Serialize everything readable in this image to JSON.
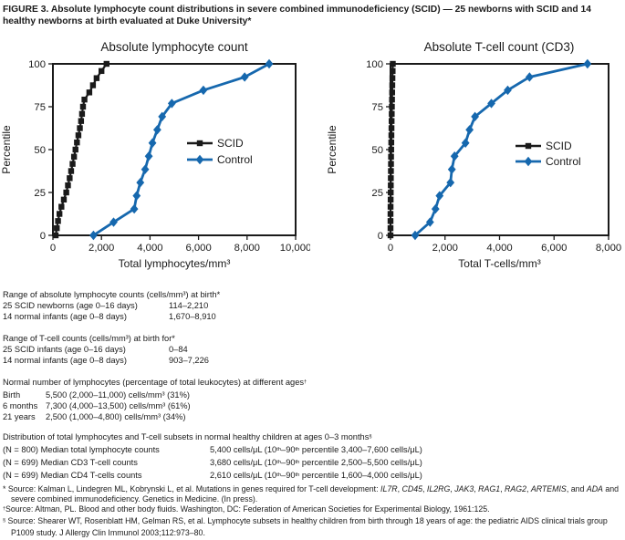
{
  "figure": {
    "title": "FIGURE 3. Absolute lymphocyte count distributions in severe combined immunodeficiency (SCID) — 25 newborns with SCID and 14 healthy newborns at birth evaluated at Duke University*"
  },
  "colors": {
    "text": "#1a1a1a",
    "scid": "#1a1a1a",
    "control": "#1668ae"
  },
  "chart_data": [
    {
      "type": "line",
      "title": "Absolute lymphocyte count",
      "xlabel": "Total lymphocytes/mm³",
      "ylabel": "Percentile",
      "xlim": [
        0,
        10000
      ],
      "ylim": [
        0,
        100
      ],
      "grid": false,
      "legend_position": "inside-right",
      "xticks": [
        {
          "v": 0,
          "label": "0"
        },
        {
          "v": 2000,
          "label": "2,000"
        },
        {
          "v": 4000,
          "label": "4,000"
        },
        {
          "v": 6000,
          "label": "6,000"
        },
        {
          "v": 8000,
          "label": "8,000"
        },
        {
          "v": 10000,
          "label": "10,000"
        }
      ],
      "yticks": [
        {
          "v": 0,
          "label": "0"
        },
        {
          "v": 25,
          "label": "25"
        },
        {
          "v": 50,
          "label": "50"
        },
        {
          "v": 75,
          "label": "75"
        },
        {
          "v": 100,
          "label": "100"
        }
      ],
      "series": [
        {
          "name": "SCID",
          "color": "#1a1a1a",
          "marker": "square",
          "points": [
            [
              114,
              0
            ],
            [
              160,
              4.17
            ],
            [
              210,
              8.33
            ],
            [
              270,
              12.5
            ],
            [
              350,
              16.67
            ],
            [
              450,
              20.83
            ],
            [
              550,
              25
            ],
            [
              620,
              29.17
            ],
            [
              690,
              33.33
            ],
            [
              750,
              37.5
            ],
            [
              810,
              41.67
            ],
            [
              870,
              45.83
            ],
            [
              930,
              50
            ],
            [
              990,
              54.17
            ],
            [
              1050,
              58.33
            ],
            [
              1110,
              62.5
            ],
            [
              1160,
              66.67
            ],
            [
              1200,
              70.83
            ],
            [
              1240,
              75
            ],
            [
              1300,
              79.17
            ],
            [
              1500,
              83.33
            ],
            [
              1650,
              87.5
            ],
            [
              1800,
              91.67
            ],
            [
              2000,
              95.83
            ],
            [
              2210,
              100
            ]
          ]
        },
        {
          "name": "Control",
          "color": "#1668ae",
          "marker": "diamond",
          "points": [
            [
              1670,
              0
            ],
            [
              2500,
              7.69
            ],
            [
              3350,
              15.38
            ],
            [
              3450,
              23.08
            ],
            [
              3600,
              30.77
            ],
            [
              3800,
              38.46
            ],
            [
              3950,
              46.15
            ],
            [
              4100,
              53.85
            ],
            [
              4300,
              61.54
            ],
            [
              4500,
              69.23
            ],
            [
              4900,
              76.92
            ],
            [
              6200,
              84.62
            ],
            [
              7900,
              92.31
            ],
            [
              8910,
              100
            ]
          ]
        }
      ]
    },
    {
      "type": "line",
      "title": "Absolute T-cell count (CD3)",
      "xlabel": "Total T-cells/mm³",
      "ylabel": "Percentile",
      "xlim": [
        0,
        8000
      ],
      "ylim": [
        0,
        100
      ],
      "grid": false,
      "legend_position": "inside-right",
      "xticks": [
        {
          "v": 0,
          "label": "0"
        },
        {
          "v": 2000,
          "label": "2,000"
        },
        {
          "v": 4000,
          "label": "4,000"
        },
        {
          "v": 6000,
          "label": "6,000"
        },
        {
          "v": 8000,
          "label": "8,000"
        }
      ],
      "yticks": [
        {
          "v": 0,
          "label": "0"
        },
        {
          "v": 25,
          "label": "25"
        },
        {
          "v": 50,
          "label": "50"
        },
        {
          "v": 75,
          "label": "75"
        },
        {
          "v": 100,
          "label": "100"
        }
      ],
      "series": [
        {
          "name": "SCID",
          "color": "#1a1a1a",
          "marker": "square",
          "points": [
            [
              0,
              0
            ],
            [
              0,
              4.17
            ],
            [
              0,
              8.33
            ],
            [
              0,
              12.5
            ],
            [
              2,
              16.67
            ],
            [
              5,
              20.83
            ],
            [
              8,
              25
            ],
            [
              10,
              29.17
            ],
            [
              12,
              33.33
            ],
            [
              15,
              37.5
            ],
            [
              18,
              41.67
            ],
            [
              20,
              45.83
            ],
            [
              25,
              50
            ],
            [
              28,
              54.17
            ],
            [
              32,
              58.33
            ],
            [
              36,
              62.5
            ],
            [
              40,
              66.67
            ],
            [
              45,
              70.83
            ],
            [
              50,
              75
            ],
            [
              55,
              79.17
            ],
            [
              60,
              83.33
            ],
            [
              65,
              87.5
            ],
            [
              70,
              91.67
            ],
            [
              78,
              95.83
            ],
            [
              84,
              100
            ]
          ]
        },
        {
          "name": "Control",
          "color": "#1668ae",
          "marker": "diamond",
          "points": [
            [
              903,
              0
            ],
            [
              1450,
              7.69
            ],
            [
              1650,
              15.38
            ],
            [
              1800,
              23.08
            ],
            [
              2200,
              30.77
            ],
            [
              2250,
              38.46
            ],
            [
              2350,
              46.15
            ],
            [
              2750,
              53.85
            ],
            [
              2900,
              61.54
            ],
            [
              3100,
              69.23
            ],
            [
              3700,
              76.92
            ],
            [
              4300,
              84.62
            ],
            [
              5100,
              92.31
            ],
            [
              7226,
              100
            ]
          ]
        }
      ]
    }
  ],
  "sections": {
    "lymph_range": {
      "heading": "Range of absolute lymphocyte counts (cells/mm³) at birth*",
      "rows": [
        {
          "label": "25 SCID newborns (age 0–16 days)",
          "value": "114–2,210"
        },
        {
          "label": "14 normal infants (age 0–8 days)",
          "value": "1,670–8,910"
        }
      ]
    },
    "tcell_range": {
      "heading": "Range of T-cell counts (cells/mm³) at birth for*",
      "rows": [
        {
          "label": "25 SCID infants (age 0–16 days)",
          "value": "0–84"
        },
        {
          "label": "14 normal infants (age 0–8 days)",
          "value": "903–7,226"
        }
      ]
    },
    "normal_lymph": {
      "heading_segments": [
        {
          "t": "Normal number of lymphocytes (percentage of total leukocytes) at different ages"
        },
        {
          "t": "†",
          "s": "sup"
        }
      ],
      "rows": [
        {
          "label": "Birth",
          "value": "5,500 (2,000–11,000) cells/mm³ (31%)"
        },
        {
          "label": "6 months",
          "value": "7,300 (4,000–13,500) cells/mm³ (61%)"
        },
        {
          "label": "21 years",
          "value": "2,500 (1,000–4,800) cells/mm³ (34%)"
        }
      ]
    },
    "distribution": {
      "heading_segments": [
        {
          "t": "Distribution of total lymphocytes and T-cell subsets in normal healthy children at ages 0–3 months"
        },
        {
          "t": "§",
          "s": "sup"
        }
      ],
      "rows": [
        {
          "label": "(N = 800) Median total lymphocyte counts",
          "value_segments": [
            {
              "t": "5,400 cells/μL (10"
            },
            {
              "t": "th",
              "s": "sup"
            },
            {
              "t": "–90"
            },
            {
              "t": "th",
              "s": "sup"
            },
            {
              "t": " percentile 3,400–7,600 cells/μL)"
            }
          ]
        },
        {
          "label": "(N = 699) Median CD3 T-cell counts",
          "value_segments": [
            {
              "t": "3,680 cells/μL (10"
            },
            {
              "t": "th",
              "s": "sup"
            },
            {
              "t": "–90"
            },
            {
              "t": "th",
              "s": "sup"
            },
            {
              "t": " percentile 2,500–5,500 cells/μL)"
            }
          ]
        },
        {
          "label": "(N = 699) Median CD4 T-cells counts",
          "value_segments": [
            {
              "t": "2,610 cells/μL (10"
            },
            {
              "t": "th",
              "s": "sup"
            },
            {
              "t": "–90"
            },
            {
              "t": "th",
              "s": "sup"
            },
            {
              "t": " percentile 1,600–4,000 cells/μL)"
            }
          ]
        }
      ]
    }
  },
  "footnotes": [
    {
      "segments": [
        {
          "t": "* Source: Kalman L, Lindegren ML, Kobrynski L, et al. Mutations in genes required for T-cell development: "
        },
        {
          "t": "IL7R",
          "s": "i"
        },
        {
          "t": ", "
        },
        {
          "t": "CD45",
          "s": "i"
        },
        {
          "t": ", "
        },
        {
          "t": "IL2RG",
          "s": "i"
        },
        {
          "t": ", "
        },
        {
          "t": "JAK3",
          "s": "i"
        },
        {
          "t": ", "
        },
        {
          "t": "RAG1",
          "s": "i"
        },
        {
          "t": ", "
        },
        {
          "t": "RAG2",
          "s": "i"
        },
        {
          "t": ", "
        },
        {
          "t": "ARTEMIS",
          "s": "i"
        },
        {
          "t": ", and "
        },
        {
          "t": "ADA",
          "s": "i"
        },
        {
          "t": " and severe combined immunodeficiency. Genetics in Medicine. (In press)."
        }
      ]
    },
    {
      "segments": [
        {
          "t": "†",
          "s": "sup"
        },
        {
          "t": "Source: Altman, PL. Blood and other body fluids. Washington, DC: Federation of American Societies for Experimental Biology, 1961:125."
        }
      ]
    },
    {
      "segments": [
        {
          "t": "§",
          "s": "sup"
        },
        {
          "t": " Source: Shearer WT, Rosenblatt HM, Gelman RS, et al. Lymphocyte subsets in healthy children from birth through 18 years of age: the pediatric AIDS clinical trials group P1009 study. J Allergy Clin Immunol 2003;112:973–80."
        }
      ]
    }
  ]
}
